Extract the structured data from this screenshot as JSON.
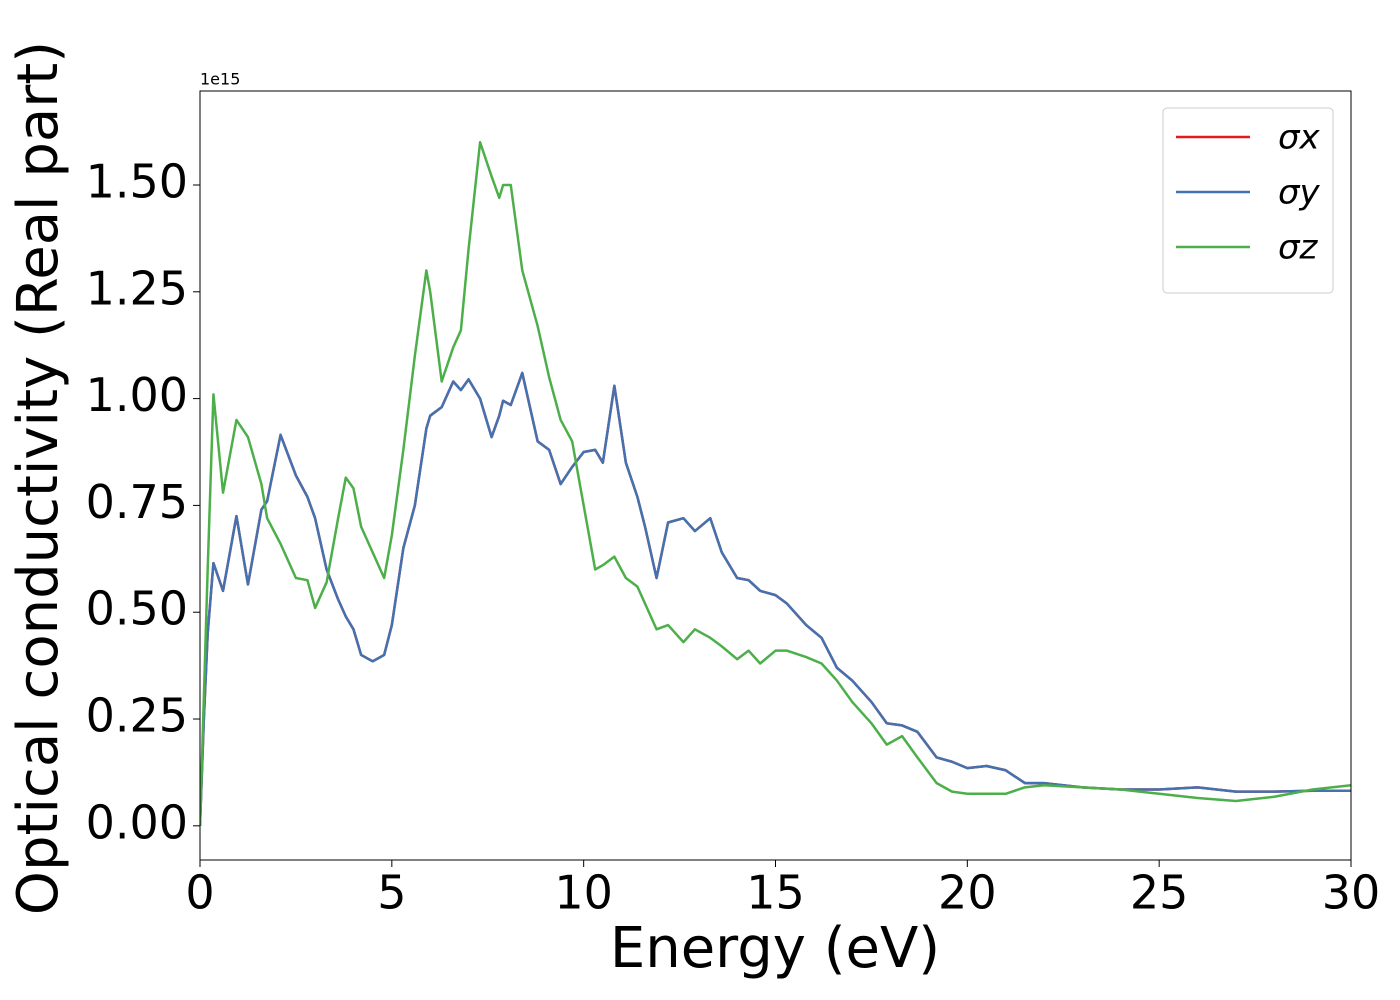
{
  "chart_data": {
    "type": "line",
    "xlabel": "Energy (eV)",
    "ylabel": "Optical conductivity (Real part)",
    "offset_label": "1e15",
    "x": [
      0,
      0.1,
      0.2,
      0.35,
      0.6,
      0.95,
      1.25,
      1.6,
      1.75,
      2.1,
      2.5,
      2.8,
      3.0,
      3.3,
      3.6,
      3.8,
      4.0,
      4.2,
      4.5,
      4.8,
      5.0,
      5.3,
      5.6,
      5.9,
      6.0,
      6.3,
      6.6,
      6.8,
      7.0,
      7.3,
      7.6,
      7.8,
      7.9,
      8.1,
      8.4,
      8.8,
      9.1,
      9.4,
      9.7,
      10.0,
      10.3,
      10.5,
      10.8,
      11.1,
      11.4,
      11.6,
      11.9,
      12.2,
      12.6,
      12.9,
      13.3,
      13.6,
      14.0,
      14.3,
      14.6,
      15.0,
      15.3,
      15.8,
      16.2,
      16.6,
      17.0,
      17.5,
      17.9,
      18.3,
      18.7,
      19.2,
      19.6,
      20.0,
      20.5,
      21.0,
      21.5,
      22.0,
      23,
      24,
      25,
      26,
      27,
      28,
      29,
      30
    ],
    "series": [
      {
        "name": "σx",
        "color": "#e41a1c",
        "values": [
          0,
          0.25,
          0.45,
          0.615,
          0.55,
          0.725,
          0.565,
          0.74,
          0.76,
          0.915,
          0.82,
          0.77,
          0.72,
          0.6,
          0.53,
          0.49,
          0.46,
          0.4,
          0.385,
          0.4,
          0.47,
          0.65,
          0.75,
          0.93,
          0.96,
          0.98,
          1.04,
          1.02,
          1.045,
          1.0,
          0.91,
          0.96,
          0.995,
          0.985,
          1.06,
          0.9,
          0.88,
          0.8,
          0.84,
          0.875,
          0.88,
          0.85,
          1.03,
          0.85,
          0.77,
          0.7,
          0.58,
          0.71,
          0.72,
          0.69,
          0.72,
          0.64,
          0.58,
          0.575,
          0.55,
          0.54,
          0.52,
          0.47,
          0.44,
          0.37,
          0.34,
          0.29,
          0.24,
          0.235,
          0.22,
          0.16,
          0.15,
          0.135,
          0.14,
          0.13,
          0.1,
          0.1,
          0.09,
          0.085,
          0.085,
          0.09,
          0.08,
          0.08,
          0.082,
          0.082
        ]
      },
      {
        "name": "σy",
        "color": "#4372b0",
        "values": [
          0,
          0.25,
          0.45,
          0.615,
          0.55,
          0.725,
          0.565,
          0.74,
          0.76,
          0.915,
          0.82,
          0.77,
          0.72,
          0.6,
          0.53,
          0.49,
          0.46,
          0.4,
          0.385,
          0.4,
          0.47,
          0.65,
          0.75,
          0.93,
          0.96,
          0.98,
          1.04,
          1.02,
          1.045,
          1.0,
          0.91,
          0.96,
          0.995,
          0.985,
          1.06,
          0.9,
          0.88,
          0.8,
          0.84,
          0.875,
          0.88,
          0.85,
          1.03,
          0.85,
          0.77,
          0.7,
          0.58,
          0.71,
          0.72,
          0.69,
          0.72,
          0.64,
          0.58,
          0.575,
          0.55,
          0.54,
          0.52,
          0.47,
          0.44,
          0.37,
          0.34,
          0.29,
          0.24,
          0.235,
          0.22,
          0.16,
          0.15,
          0.135,
          0.14,
          0.13,
          0.1,
          0.1,
          0.09,
          0.085,
          0.085,
          0.09,
          0.08,
          0.08,
          0.082,
          0.082
        ]
      },
      {
        "name": "σz",
        "color": "#4daf4a",
        "values": [
          0,
          0.3,
          0.6,
          1.01,
          0.78,
          0.95,
          0.91,
          0.8,
          0.72,
          0.66,
          0.58,
          0.575,
          0.51,
          0.57,
          0.72,
          0.815,
          0.79,
          0.7,
          0.64,
          0.58,
          0.68,
          0.88,
          1.1,
          1.3,
          1.25,
          1.04,
          1.12,
          1.16,
          1.35,
          1.6,
          1.52,
          1.47,
          1.5,
          1.5,
          1.3,
          1.17,
          1.05,
          0.95,
          0.9,
          0.75,
          0.6,
          0.61,
          0.63,
          0.58,
          0.56,
          0.52,
          0.46,
          0.47,
          0.43,
          0.46,
          0.44,
          0.42,
          0.39,
          0.41,
          0.38,
          0.41,
          0.41,
          0.395,
          0.38,
          0.34,
          0.29,
          0.24,
          0.19,
          0.21,
          0.16,
          0.1,
          0.08,
          0.075,
          0.075,
          0.075,
          0.09,
          0.095,
          0.09,
          0.085,
          0.075,
          0.065,
          0.058,
          0.068,
          0.085,
          0.095
        ]
      }
    ],
    "xlim": [
      0,
      30
    ],
    "xticks": [
      0,
      5,
      10,
      15,
      20,
      25,
      30
    ],
    "ylim": [
      -0.08,
      1.72
    ],
    "yticks": [
      {
        "value": 0,
        "label": "0.00"
      },
      {
        "value": 0.25,
        "label": "0.25"
      },
      {
        "value": 0.5,
        "label": "0.50"
      },
      {
        "value": 0.75,
        "label": "0.75"
      },
      {
        "value": 1,
        "label": "1.00"
      },
      {
        "value": 1.25,
        "label": "1.25"
      },
      {
        "value": 1.5,
        "label": "1.50"
      }
    ],
    "legend": "upper right",
    "grid": false
  }
}
